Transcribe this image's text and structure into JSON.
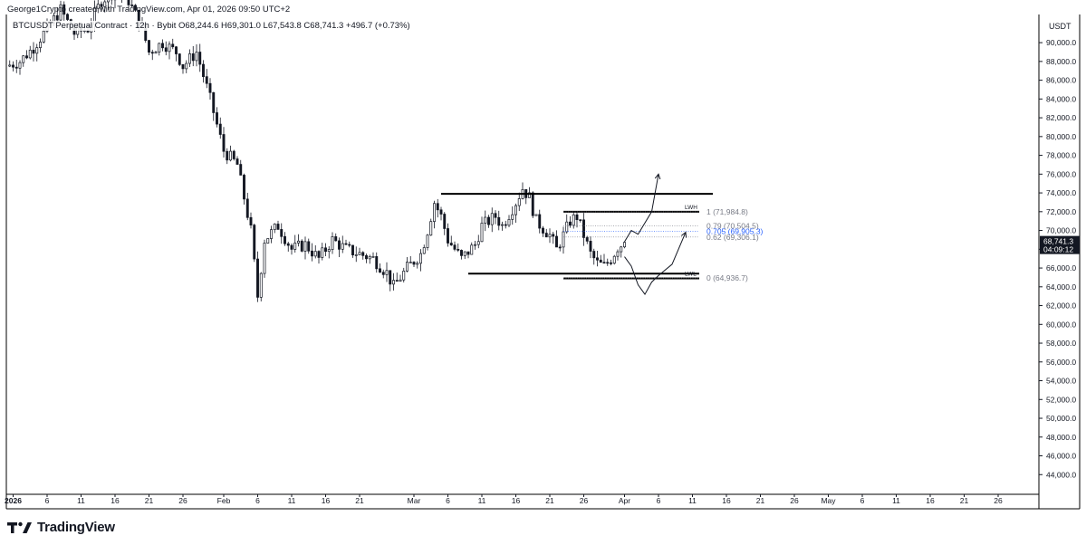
{
  "header": {
    "creator": "George1Crypto created with TradingView.com, Apr 01, 2026 09:50 UTC+2"
  },
  "legend": {
    "symbol": "BTCUSDT Perpetual Contract · 12h · Bybit",
    "ohlc": "O68,244.6 H69,301.0 L67,543.8 C68,741.3 +496.7 (+0.73%)",
    "change_color": "#089981"
  },
  "brand": {
    "name": "TradingView"
  },
  "chart_data": {
    "type": "candlestick",
    "currency_label": "USDT",
    "ylim": [
      42000,
      93000
    ],
    "y_ticks": [
      44000,
      46000,
      48000,
      50000,
      52000,
      54000,
      56000,
      58000,
      60000,
      62000,
      64000,
      66000,
      68000,
      70000,
      72000,
      74000,
      76000,
      78000,
      80000,
      82000,
      84000,
      86000,
      88000,
      90000
    ],
    "y_tick_labels": [
      "44,000.0",
      "46,000.0",
      "48,000.0",
      "50,000.0",
      "52,000.0",
      "54,000.0",
      "56,000.0",
      "58,000.0",
      "60,000.0",
      "62,000.0",
      "64,000.0",
      "66,000.0",
      "68,000.0",
      "70,000.0",
      "72,000.0",
      "74,000.0",
      "76,000.0",
      "78,000.0",
      "80,000.0",
      "82,000.0",
      "84,000.0",
      "86,000.0",
      "88,000.0",
      "90,000.0"
    ],
    "x_ticks": [
      {
        "date": "2026-01-01",
        "label": "2026",
        "bold": true
      },
      {
        "date": "2026-01-06",
        "label": "6"
      },
      {
        "date": "2026-01-11",
        "label": "11"
      },
      {
        "date": "2026-01-16",
        "label": "16"
      },
      {
        "date": "2026-01-21",
        "label": "21"
      },
      {
        "date": "2026-01-26",
        "label": "26"
      },
      {
        "date": "2026-02-01",
        "label": "Feb"
      },
      {
        "date": "2026-02-06",
        "label": "6"
      },
      {
        "date": "2026-02-11",
        "label": "11"
      },
      {
        "date": "2026-02-16",
        "label": "16"
      },
      {
        "date": "2026-02-21",
        "label": "21"
      },
      {
        "date": "2026-03-01",
        "label": "Mar"
      },
      {
        "date": "2026-03-06",
        "label": "6"
      },
      {
        "date": "2026-03-11",
        "label": "11"
      },
      {
        "date": "2026-03-16",
        "label": "16"
      },
      {
        "date": "2026-03-21",
        "label": "21"
      },
      {
        "date": "2026-03-26",
        "label": "26"
      },
      {
        "date": "2026-04-01",
        "label": "Apr"
      },
      {
        "date": "2026-04-06",
        "label": "6"
      },
      {
        "date": "2026-04-11",
        "label": "11"
      },
      {
        "date": "2026-04-16",
        "label": "16"
      },
      {
        "date": "2026-04-21",
        "label": "21"
      },
      {
        "date": "2026-04-26",
        "label": "26"
      },
      {
        "date": "2026-05-01",
        "label": "May"
      },
      {
        "date": "2026-05-06",
        "label": "6"
      },
      {
        "date": "2026-05-11",
        "label": "11"
      },
      {
        "date": "2026-05-16",
        "label": "16"
      },
      {
        "date": "2026-05-21",
        "label": "21"
      },
      {
        "date": "2026-05-26",
        "label": "26"
      }
    ],
    "x_range": [
      "2025-12-31",
      "2026-06-01"
    ],
    "candle_up_color": "#131722",
    "candle_down_color": "#131722",
    "price_path": [
      {
        "date": "2025-12-31",
        "close": 87500
      },
      {
        "date": "2026-01-02",
        "close": 88000
      },
      {
        "date": "2026-01-04",
        "close": 89500
      },
      {
        "date": "2026-01-06",
        "close": 91500
      },
      {
        "date": "2026-01-08",
        "close": 93500
      },
      {
        "date": "2026-01-10",
        "close": 91000
      },
      {
        "date": "2026-01-12",
        "close": 91500
      },
      {
        "date": "2026-01-14",
        "close": 94500
      },
      {
        "date": "2026-01-16",
        "close": 95500
      },
      {
        "date": "2026-01-18",
        "close": 94500
      },
      {
        "date": "2026-01-20",
        "close": 91500
      },
      {
        "date": "2026-01-21",
        "close": 89000
      },
      {
        "date": "2026-01-23",
        "close": 90000
      },
      {
        "date": "2026-01-25",
        "close": 89000
      },
      {
        "date": "2026-01-26",
        "close": 87500
      },
      {
        "date": "2026-01-28",
        "close": 89000
      },
      {
        "date": "2026-01-30",
        "close": 84000
      },
      {
        "date": "2026-02-01",
        "close": 78500
      },
      {
        "date": "2026-02-03",
        "close": 77000
      },
      {
        "date": "2026-02-05",
        "close": 70000
      },
      {
        "date": "2026-02-06",
        "close": 63000
      },
      {
        "date": "2026-02-07",
        "close": 69000
      },
      {
        "date": "2026-02-09",
        "close": 70500
      },
      {
        "date": "2026-02-11",
        "close": 68000
      },
      {
        "date": "2026-02-13",
        "close": 68500
      },
      {
        "date": "2026-02-15",
        "close": 67000
      },
      {
        "date": "2026-02-17",
        "close": 69000
      },
      {
        "date": "2026-02-19",
        "close": 68000
      },
      {
        "date": "2026-02-21",
        "close": 67500
      },
      {
        "date": "2026-02-23",
        "close": 67000
      },
      {
        "date": "2026-02-25",
        "close": 65500
      },
      {
        "date": "2026-02-26",
        "close": 64000
      },
      {
        "date": "2026-02-28",
        "close": 66000
      },
      {
        "date": "2026-03-02",
        "close": 67500
      },
      {
        "date": "2026-03-03",
        "close": 70000
      },
      {
        "date": "2026-03-04",
        "close": 73000
      },
      {
        "date": "2026-03-05",
        "close": 71500
      },
      {
        "date": "2026-03-06",
        "close": 69000
      },
      {
        "date": "2026-03-08",
        "close": 67000
      },
      {
        "date": "2026-03-10",
        "close": 68500
      },
      {
        "date": "2026-03-11",
        "close": 70500
      },
      {
        "date": "2026-03-13",
        "close": 71500
      },
      {
        "date": "2026-03-14",
        "close": 70500
      },
      {
        "date": "2026-03-16",
        "close": 73000
      },
      {
        "date": "2026-03-17",
        "close": 74500
      },
      {
        "date": "2026-03-18",
        "close": 73500
      },
      {
        "date": "2026-03-19",
        "close": 71000
      },
      {
        "date": "2026-03-21",
        "close": 69500
      },
      {
        "date": "2026-03-22",
        "close": 68000
      },
      {
        "date": "2026-03-24",
        "close": 71000
      },
      {
        "date": "2026-03-25",
        "close": 71500
      },
      {
        "date": "2026-03-26",
        "close": 69500
      },
      {
        "date": "2026-03-27",
        "close": 67500
      },
      {
        "date": "2026-03-28",
        "close": 66500
      },
      {
        "date": "2026-03-29",
        "close": 66200
      },
      {
        "date": "2026-03-30",
        "close": 67000
      },
      {
        "date": "2026-03-31",
        "close": 68200
      },
      {
        "date": "2026-04-01",
        "close": 68741.3
      }
    ],
    "last_price": {
      "value": 68741.3,
      "label": "68,741.3",
      "countdown": "04:09:12",
      "color": "#131722"
    },
    "annotations": {
      "range_top": {
        "value": 73900,
        "from": "2026-03-05",
        "to": "2026-04-14"
      },
      "range_bottom": {
        "value": 65400,
        "from": "2026-03-09",
        "to": "2026-04-12"
      },
      "lwh": {
        "value": 72000,
        "from": "2026-03-23",
        "to": "2026-04-12",
        "label": "LWH"
      },
      "lwl": {
        "value": 64900,
        "from": "2026-03-23",
        "to": "2026-04-12",
        "label": "LWL"
      },
      "fib": {
        "from": "2026-03-23",
        "to": "2026-04-12",
        "levels": [
          {
            "value": 71984.8,
            "label": "1 (71,984.8)",
            "color": "#787b86"
          },
          {
            "value": 70504.5,
            "label": "0.79 (70,504.5)",
            "color": "#787b86"
          },
          {
            "value": 69905.3,
            "label": "0.705 (69,905.3)",
            "color": "#2962ff"
          },
          {
            "value": 69306.1,
            "label": "0.62 (69,306.1)",
            "color": "#787b86"
          },
          {
            "value": 64936.7,
            "label": "0 (64,936.7)",
            "color": "#787b86"
          }
        ]
      },
      "projection_up": [
        {
          "date": "2026-04-01",
          "value": 68800
        },
        {
          "date": "2026-04-02",
          "value": 70000
        },
        {
          "date": "2026-04-03",
          "value": 69600
        },
        {
          "date": "2026-04-04",
          "value": 70800
        },
        {
          "date": "2026-04-05",
          "value": 72000
        },
        {
          "date": "2026-04-06",
          "value": 76000
        }
      ],
      "projection_alt": [
        {
          "date": "2026-04-01",
          "value": 67200
        },
        {
          "date": "2026-04-02",
          "value": 66200
        },
        {
          "date": "2026-04-03",
          "value": 64200
        },
        {
          "date": "2026-04-04",
          "value": 63200
        },
        {
          "date": "2026-04-05",
          "value": 64500
        },
        {
          "date": "2026-04-06",
          "value": 65200
        },
        {
          "date": "2026-04-08",
          "value": 66400
        },
        {
          "date": "2026-04-10",
          "value": 69800
        }
      ]
    }
  }
}
